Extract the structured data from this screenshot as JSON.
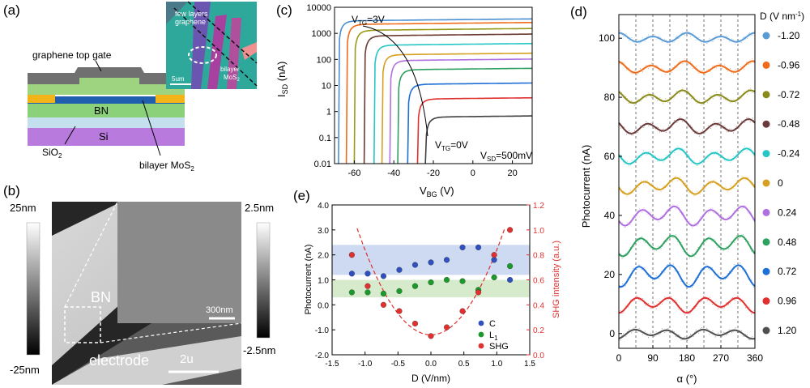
{
  "panel_a": {
    "label": "(a)",
    "texts": {
      "top_gate": "graphene top gate",
      "bn": "BN",
      "si": "Si",
      "sio2": "SiO",
      "sio2_sub": "2",
      "bilayer": "bilayer MoS",
      "bilayer_sub": "2",
      "inset_few": "few layers",
      "inset_graphene": "graphene",
      "inset_bilayer": "bilayer",
      "inset_mos": "MoS",
      "inset_mos_sub": "2",
      "inset_scale": "5um"
    }
  },
  "panel_b": {
    "label": "(b)",
    "cbar_left_top": "25nm",
    "cbar_left_bottom": "-25nm",
    "cbar_right_top": "2.5nm",
    "cbar_right_bottom": "-2.5nm",
    "bn_label": "BN",
    "electrode_label": "electrode",
    "inset_scale": "300nm",
    "scale": "2u"
  },
  "chart_data": [
    {
      "panel": "(c)",
      "type": "line",
      "ylabel": "I",
      "ylabel_sub": "SD",
      "ylabel_unit": " (nA)",
      "xlabel": "V",
      "xlabel_sub": "BG",
      "xlabel_unit": " (V)",
      "xlim": [
        -70,
        30
      ],
      "ylim": [
        0.01,
        10000
      ],
      "yscale": "log",
      "xticks": [
        "-60",
        "-40",
        "-20",
        "0",
        "20"
      ],
      "yticks": [
        "0.01",
        "0.1",
        "1",
        "10",
        "100",
        "1000",
        "10000"
      ],
      "annotations": {
        "top_prefix": "V",
        "top_sub": "TG",
        "top_val": "=3V",
        "bottom_prefix": "V",
        "bottom_sub": "TG",
        "bottom_val": "=0V",
        "vsd_prefix": "V",
        "vsd_sub": "SD",
        "vsd_val": "=500mV"
      },
      "series": [
        {
          "color": "#4a8fd0",
          "onset": -68,
          "sat": 3000
        },
        {
          "color": "#ef6c1a",
          "onset": -64,
          "sat": 2200
        },
        {
          "color": "#9a9a1a",
          "onset": -60,
          "sat": 1300
        },
        {
          "color": "#6b3a2e",
          "onset": -55,
          "sat": 800
        },
        {
          "color": "#26c6c6",
          "onset": -50,
          "sat": 350
        },
        {
          "color": "#d6a020",
          "onset": -46,
          "sat": 150
        },
        {
          "color": "#b070e0",
          "onset": -42,
          "sat": 90
        },
        {
          "color": "#2ea060",
          "onset": -38,
          "sat": 40
        },
        {
          "color": "#1e6fd6",
          "onset": -33,
          "sat": 11
        },
        {
          "color": "#e03030",
          "onset": -28,
          "sat": 3
        },
        {
          "color": "#404040",
          "onset": -24,
          "sat": 0.6
        }
      ]
    },
    {
      "panel": "(e)",
      "type": "scatter",
      "xlabel": "D (V/nm)",
      "ylabel_left": "Photocurrent (nA)",
      "ylabel_right": "SHG intensity (a.u.)",
      "xlim": [
        -1.5,
        1.5
      ],
      "ylim_left": [
        -2.0,
        4.0
      ],
      "ylim_right": [
        0.0,
        1.2
      ],
      "xticks": [
        "-1.5",
        "-1.0",
        "-0.5",
        "0.0",
        "0.5",
        "1.0",
        "1.5"
      ],
      "yticks_left": [
        "-2.0",
        "-1.0",
        "0.0",
        "1.0",
        "2.0",
        "3.0",
        "4.0"
      ],
      "yticks_right": [
        "0.0",
        "0.2",
        "0.4",
        "0.6",
        "0.8",
        "1.0",
        "1.2"
      ],
      "bands": {
        "blue": [
          1.2,
          2.4
        ],
        "green": [
          0.3,
          1.0
        ]
      },
      "legend": [
        {
          "name": "C",
          "color": "#3050c0"
        },
        {
          "name": "L",
          "sub": "1",
          "color": "#1a9a2a"
        },
        {
          "name": "SHG",
          "color": "#e03030"
        }
      ],
      "C": {
        "x": [
          -1.2,
          -0.96,
          -0.72,
          -0.48,
          -0.24,
          0.0,
          0.24,
          0.48,
          0.72,
          0.96,
          1.2
        ],
        "y": [
          1.25,
          1.25,
          1.15,
          1.4,
          1.6,
          1.7,
          1.8,
          2.3,
          2.3,
          1.8,
          1.0
        ]
      },
      "L1": {
        "x": [
          -1.2,
          -0.96,
          -0.72,
          -0.48,
          -0.24,
          0.0,
          0.24,
          0.48,
          0.72,
          0.96,
          1.2
        ],
        "y": [
          0.5,
          0.5,
          0.45,
          0.55,
          0.75,
          0.9,
          1.0,
          0.95,
          0.6,
          1.1,
          1.55
        ]
      },
      "SHG": {
        "x": [
          -1.2,
          -0.96,
          -0.72,
          -0.48,
          -0.24,
          0.0,
          0.24,
          0.48,
          0.72,
          0.96,
          1.2
        ],
        "y": [
          0.8,
          0.55,
          0.4,
          0.35,
          0.25,
          0.15,
          0.22,
          0.35,
          0.5,
          0.8,
          1.0
        ]
      }
    },
    {
      "panel": "(d)",
      "type": "line",
      "xlabel": "α (°)",
      "ylabel": "Photocurrent (nA)",
      "xlim": [
        0,
        360
      ],
      "ylim": [
        -5,
        108
      ],
      "xticks": [
        "0",
        "90",
        "180",
        "270",
        "360"
      ],
      "yticks": [
        "0",
        "20",
        "40",
        "60",
        "80",
        "100"
      ],
      "legend_title": "D (V nm",
      "legend_title_sup": "-1",
      "legend_title_end": ")",
      "series": [
        {
          "name": "-1.20",
          "color": "#5b9bd5",
          "offset": 100,
          "amp": 1.2
        },
        {
          "name": "-0.96",
          "color": "#ef6c1a",
          "offset": 90,
          "amp": 1.5
        },
        {
          "name": "-0.72",
          "color": "#8a8a1a",
          "offset": 80,
          "amp": 1.6
        },
        {
          "name": "-0.48",
          "color": "#6b3a3a",
          "offset": 70,
          "amp": 1.8
        },
        {
          "name": "-0.24",
          "color": "#26c6c6",
          "offset": 60,
          "amp": 1.9
        },
        {
          "name": "0",
          "color": "#d6a020",
          "offset": 50,
          "amp": 2.0
        },
        {
          "name": "0.24",
          "color": "#b070e0",
          "offset": 40,
          "amp": 2.4
        },
        {
          "name": "0.48",
          "color": "#2ea060",
          "offset": 30,
          "amp": 2.6
        },
        {
          "name": "0.72",
          "color": "#1e6fd6",
          "offset": 20,
          "amp": 2.8
        },
        {
          "name": "0.96",
          "color": "#e03030",
          "offset": 10,
          "amp": 2.0
        },
        {
          "name": "1.20",
          "color": "#505050",
          "offset": 0,
          "amp": 1.2
        }
      ]
    }
  ]
}
